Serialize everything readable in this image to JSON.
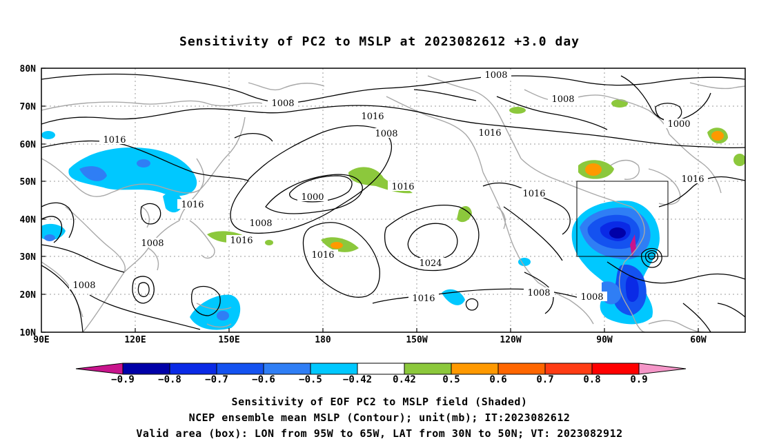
{
  "title": "Sensitivity of PC2 to MSLP at 2023082612 +3.0 day",
  "map": {
    "lat_labels": [
      "80N",
      "70N",
      "60N",
      "50N",
      "40N",
      "30N",
      "20N",
      "10N"
    ],
    "lon_labels": [
      "90E",
      "120E",
      "150E",
      "180",
      "150W",
      "120W",
      "90W",
      "60W"
    ],
    "contour_labels": [
      "1008",
      "1008",
      "1008",
      "1016",
      "1016",
      "1008",
      "1000",
      "1016",
      "1016",
      "1016",
      "1000",
      "1016",
      "1008",
      "1016",
      "1016",
      "1024",
      "1016",
      "1008",
      "1008",
      "1008",
      "1008",
      "1016"
    ],
    "valid_box": {
      "lon_from": "95W",
      "lon_to": "65W",
      "lat_from": "30N",
      "lat_to": "50N"
    }
  },
  "colorbar": {
    "labels": [
      "-0.9",
      "-0.8",
      "-0.7",
      "-0.6",
      "-0.5",
      "-0.42",
      "0.42",
      "0.5",
      "0.6",
      "0.7",
      "0.8",
      "0.9"
    ],
    "colors": [
      "#0000a8",
      "#0a2ae6",
      "#1452f0",
      "#2f7ef5",
      "#00c8ff",
      "#ffffff",
      "#8cc83c",
      "#ff9900",
      "#ff6600",
      "#ff3c14",
      "#ff0000"
    ],
    "left_tip_color": "#c8148c",
    "right_tip_color": "#f596c8"
  },
  "captions": {
    "line1": "Sensitivity of EOF PC2 to MSLP field (Shaded)",
    "line2": "NCEP ensemble mean MSLP (Contour); unit(mb); IT:2023082612",
    "line3": "Valid area (box): LON from 95W to 65W, LAT from 30N to 50N; VT: 2023082912"
  }
}
